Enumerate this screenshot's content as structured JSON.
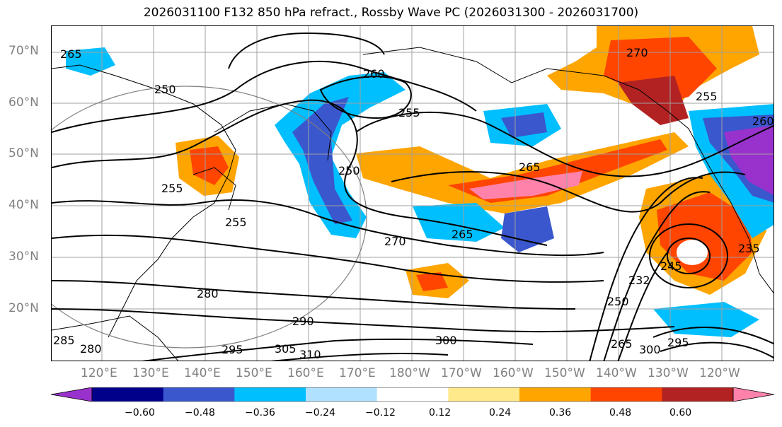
{
  "title": "2026031100 F132 850 hPa refract., Rossby Wave PC (2026031300 - 2026031700)",
  "lat_labels": [
    "70°N",
    "60°N",
    "50°N",
    "40°N",
    "30°N",
    "20°N"
  ],
  "lon_labels": [
    "120°E",
    "130°E",
    "140°E",
    "150°E",
    "160°E",
    "170°E",
    "180°W",
    "170°W",
    "160°W",
    "150°W",
    "140°W",
    "130°W",
    "120°W"
  ],
  "contour_labels": [
    "265",
    "270",
    "265",
    "260",
    "260",
    "255",
    "255",
    "250",
    "265",
    "255",
    "255",
    "250",
    "235",
    "245",
    "232",
    "250",
    "280",
    "290",
    "295",
    "300",
    "305",
    "310",
    "285",
    "280",
    "295",
    "300",
    "265",
    "270"
  ],
  "colorbar": {
    "colors": [
      "#9932cc",
      "#00008b",
      "#3a57cd",
      "#00bfff",
      "#b0e2ff",
      "#ffffff",
      "#ffe98a",
      "#ffa500",
      "#ff4500",
      "#b22222",
      "#ff82ab"
    ],
    "tick_labels": [
      "−0.60",
      "−0.48",
      "−0.36",
      "−0.24",
      "−0.12",
      "0.12",
      "0.24",
      "0.36",
      "0.48",
      "0.60"
    ]
  }
}
